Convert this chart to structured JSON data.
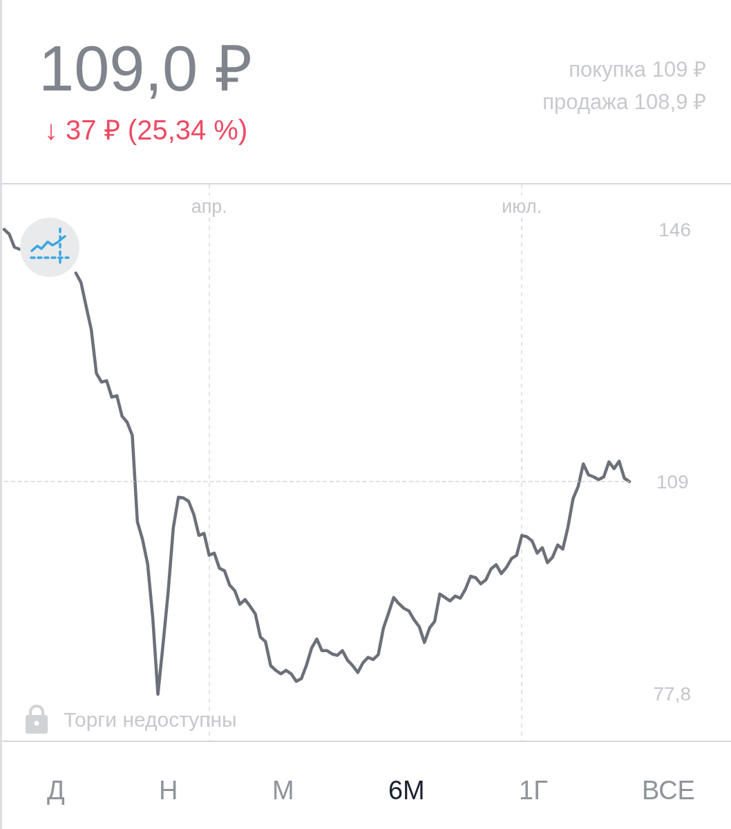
{
  "chart_data": {
    "type": "line",
    "title": "109,0 ₽",
    "subtitle": "↓ 37 ₽ (25,34 %)",
    "categories": [
      null,
      null,
      null,
      null,
      null,
      null,
      null,
      null,
      null,
      null,
      null,
      null,
      null,
      null,
      null,
      null,
      null,
      null,
      null,
      null,
      null,
      null,
      null,
      null,
      null,
      null,
      null,
      null,
      null,
      null,
      null,
      null,
      null,
      null,
      null,
      null,
      null,
      null,
      null,
      null,
      "апр.",
      null,
      null,
      null,
      null,
      null,
      null,
      null,
      null,
      null,
      null,
      null,
      null,
      null,
      null,
      null,
      null,
      null,
      null,
      null,
      null,
      null,
      null,
      null,
      null,
      null,
      null,
      null,
      null,
      null,
      null,
      null,
      null,
      null,
      null,
      null,
      null,
      null,
      null,
      null,
      null,
      null,
      null,
      null,
      null,
      null,
      null,
      null,
      null,
      null,
      null,
      null,
      null,
      null,
      null,
      null,
      null,
      null,
      null,
      null,
      null,
      "июл.",
      null,
      null,
      null,
      null,
      null,
      null,
      null,
      null,
      null,
      null,
      null,
      null,
      null,
      null,
      null,
      null,
      null,
      null,
      null,
      null,
      null
    ],
    "values": [
      146.0,
      145.3,
      143.4,
      143.1,
      null,
      null,
      null,
      null,
      null,
      null,
      null,
      null,
      null,
      null,
      139.6,
      138.2,
      134.7,
      131.3,
      124.9,
      123.6,
      123.8,
      121.4,
      121.6,
      118.6,
      117.7,
      115.8,
      103.1,
      100.5,
      96.9,
      89.0,
      77.8,
      85.1,
      92.8,
      102.2,
      106.7,
      106.6,
      106.1,
      104.2,
      101.1,
      101.4,
      98.2,
      98.5,
      96.3,
      95.9,
      93.8,
      93.0,
      91.0,
      91.7,
      90.7,
      89.6,
      86.2,
      85.5,
      82.0,
      81.3,
      80.8,
      81.3,
      80.8,
      79.7,
      80.1,
      82.1,
      84.6,
      85.9,
      84.2,
      84.2,
      83.7,
      83.5,
      84.2,
      82.8,
      82.0,
      81.0,
      82.4,
      83.2,
      82.9,
      83.6,
      87.5,
      89.7,
      92.0,
      91.1,
      90.4,
      90.0,
      88.7,
      87.7,
      85.4,
      87.5,
      88.5,
      92.5,
      92.0,
      91.5,
      92.2,
      91.9,
      93.2,
      95.1,
      94.9,
      94.0,
      94.6,
      96.2,
      96.8,
      95.5,
      96.4,
      97.7,
      98.2,
      101.1,
      100.9,
      100.3,
      98.5,
      99.3,
      97.1,
      97.9,
      99.7,
      99.1,
      102.3,
      106.5,
      108.3,
      111.6,
      110.0,
      109.7,
      109.3,
      109.7,
      111.9,
      110.9,
      112.0,
      109.5,
      109.0
    ],
    "color": "#6b7079",
    "ylim": [
      71.0,
      152.6
    ],
    "yticks": [
      146,
      {
        "value": 77.8,
        "label": "77,8"
      }
    ],
    "grid": "x",
    "marker": "none",
    "line_style": "solid",
    "ref_lines": [
      {
        "axis": "y",
        "value": 109,
        "label": "109",
        "color": "#d3d5d8",
        "line_style": "dashed"
      }
    ],
    "annotations": [
      "покупка 109 ₽",
      "продажа 108,9 ₽",
      "Торги недоступны",
      "Д",
      "Н",
      "М",
      "6М",
      "1Г",
      "ВСЕ"
    ]
  }
}
